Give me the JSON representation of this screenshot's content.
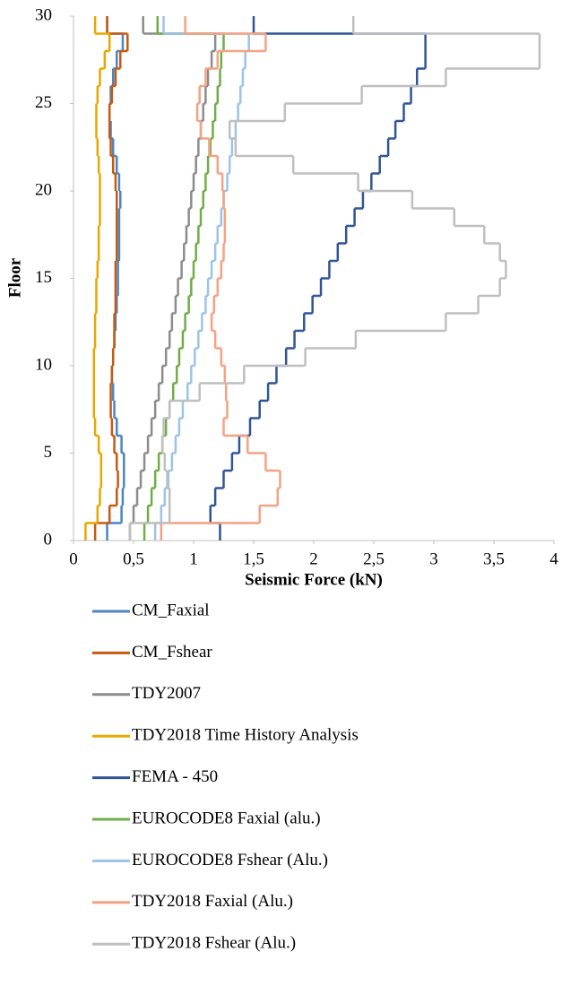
{
  "chart_data": {
    "type": "step",
    "x_label": "Seismic Force (kN)",
    "y_label": "Floor",
    "y": [
      1,
      2,
      3,
      4,
      5,
      6,
      7,
      8,
      9,
      10,
      11,
      12,
      13,
      14,
      15,
      16,
      17,
      18,
      19,
      20,
      21,
      22,
      23,
      24,
      25,
      26,
      27,
      28,
      29,
      30
    ],
    "xlim": [
      0,
      4
    ],
    "ylim": [
      0,
      30
    ],
    "xticks": [
      0,
      {
        "value": 0.5,
        "label": "0,5"
      },
      1,
      {
        "value": 1.5,
        "label": "1,5"
      },
      2,
      {
        "value": 2.5,
        "label": "2,5"
      },
      3,
      {
        "value": 3.5,
        "label": "3,5"
      },
      4
    ],
    "yticks": [
      0,
      5,
      10,
      15,
      20,
      25,
      30
    ],
    "grid": false,
    "legend": "bottom",
    "series": [
      {
        "name": "CM_Faxial",
        "color": "#4a86c5",
        "values": [
          0.28,
          0.4,
          0.41,
          0.42,
          0.42,
          0.4,
          0.36,
          0.34,
          0.33,
          0.32,
          0.33,
          0.34,
          0.35,
          0.36,
          0.37,
          0.37,
          0.38,
          0.38,
          0.38,
          0.39,
          0.38,
          0.36,
          0.33,
          0.31,
          0.3,
          0.31,
          0.33,
          0.36,
          0.41,
          0.28
        ]
      },
      {
        "name": "CM_Fshear",
        "color": "#c55a11",
        "values": [
          0.18,
          0.3,
          0.36,
          0.37,
          0.36,
          0.34,
          0.32,
          0.31,
          0.31,
          0.32,
          0.33,
          0.34,
          0.34,
          0.35,
          0.35,
          0.35,
          0.36,
          0.36,
          0.36,
          0.36,
          0.35,
          0.33,
          0.31,
          0.3,
          0.3,
          0.32,
          0.35,
          0.39,
          0.45,
          0.28
        ]
      },
      {
        "name": "TDY2007",
        "color": "#8c8c8c",
        "values": [
          0.47,
          0.5,
          0.53,
          0.56,
          0.59,
          0.62,
          0.65,
          0.68,
          0.71,
          0.74,
          0.77,
          0.8,
          0.82,
          0.85,
          0.87,
          0.9,
          0.92,
          0.94,
          0.96,
          0.98,
          1.0,
          1.02,
          1.04,
          1.06,
          1.08,
          1.1,
          1.12,
          1.15,
          1.18,
          0.58
        ]
      },
      {
        "name": "TDY2018 Time History Analysis",
        "color": "#e6a800",
        "values": [
          0.1,
          0.2,
          0.22,
          0.23,
          0.23,
          0.21,
          0.18,
          0.17,
          0.17,
          0.17,
          0.17,
          0.18,
          0.18,
          0.19,
          0.19,
          0.2,
          0.21,
          0.21,
          0.22,
          0.22,
          0.22,
          0.21,
          0.2,
          0.19,
          0.19,
          0.2,
          0.22,
          0.26,
          0.3,
          0.18
        ]
      },
      {
        "name": "FEMA - 450",
        "color": "#2f5597",
        "values": [
          1.22,
          1.14,
          1.18,
          1.25,
          1.32,
          1.38,
          1.47,
          1.55,
          1.62,
          1.69,
          1.77,
          1.84,
          1.92,
          1.99,
          2.06,
          2.13,
          2.2,
          2.27,
          2.34,
          2.41,
          2.48,
          2.55,
          2.62,
          2.68,
          2.75,
          2.81,
          2.86,
          2.93,
          2.93,
          1.5
        ]
      },
      {
        "name": "EUROCODE8 Faxial (alu.)",
        "color": "#70ad47",
        "values": [
          0.59,
          0.62,
          0.65,
          0.68,
          0.71,
          0.74,
          0.77,
          0.8,
          0.83,
          0.86,
          0.88,
          0.91,
          0.93,
          0.96,
          0.98,
          1.0,
          1.02,
          1.04,
          1.06,
          1.08,
          1.1,
          1.12,
          1.14,
          1.16,
          1.18,
          1.2,
          1.22,
          1.23,
          1.25,
          0.7
        ]
      },
      {
        "name": "EUROCODE8 Fshear (Alu.)",
        "color": "#9dc3e6",
        "values": [
          0.68,
          0.73,
          0.76,
          0.79,
          0.82,
          0.85,
          0.88,
          0.91,
          0.95,
          0.98,
          1.01,
          1.04,
          1.07,
          1.1,
          1.12,
          1.15,
          1.18,
          1.2,
          1.23,
          1.25,
          1.28,
          1.3,
          1.32,
          1.35,
          1.37,
          1.39,
          1.41,
          1.43,
          1.46,
          0.75
        ]
      },
      {
        "name": "TDY2018 Faxial (Alu.)",
        "color": "#f4a283",
        "values": [
          0.73,
          1.55,
          1.7,
          1.72,
          1.6,
          1.45,
          1.25,
          1.28,
          1.27,
          1.26,
          1.23,
          1.18,
          1.15,
          1.17,
          1.2,
          1.23,
          1.25,
          1.26,
          1.26,
          1.25,
          1.24,
          1.2,
          1.13,
          1.06,
          1.03,
          1.05,
          1.1,
          1.2,
          1.6,
          0.93
        ]
      },
      {
        "name": "TDY2018 Fshear (Alu.)",
        "color": "#bfbfbf",
        "values": [
          0.47,
          0.8,
          0.8,
          0.78,
          0.76,
          0.74,
          0.75,
          0.8,
          1.05,
          1.42,
          1.93,
          2.35,
          3.1,
          3.37,
          3.55,
          3.6,
          3.55,
          3.42,
          3.17,
          2.82,
          2.37,
          1.83,
          1.35,
          1.3,
          1.76,
          2.4,
          3.1,
          3.88,
          3.88,
          2.33
        ]
      }
    ]
  }
}
